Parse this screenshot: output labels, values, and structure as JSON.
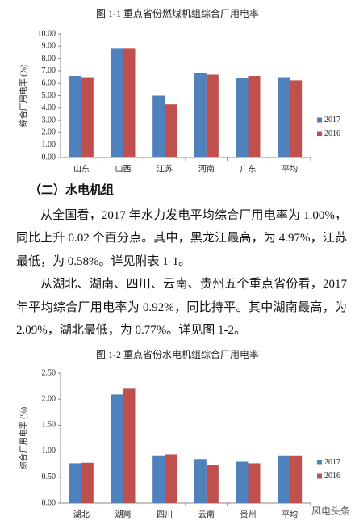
{
  "chart_data": [
    {
      "type": "bar",
      "title": "图 1-1 重点省份燃煤机组综合厂用电率",
      "y_label": "综合厂用电率 (%)",
      "categories": [
        "山东",
        "山西",
        "江苏",
        "河南",
        "广东",
        "平均"
      ],
      "series": [
        {
          "name": "2017",
          "color": "#4f81bd",
          "values": [
            6.6,
            8.8,
            5.0,
            6.85,
            6.45,
            6.5
          ]
        },
        {
          "name": "2016",
          "color": "#c0504d",
          "values": [
            6.5,
            8.8,
            4.3,
            6.7,
            6.6,
            6.25
          ]
        }
      ],
      "ylim": [
        0,
        10
      ],
      "yticks": [
        {
          "value": 0,
          "label": "0.00"
        },
        {
          "value": 1,
          "label": "1.00"
        },
        {
          "value": 2,
          "label": "2.00"
        },
        {
          "value": 3,
          "label": "3.00"
        },
        {
          "value": 4,
          "label": "4.00"
        },
        {
          "value": 5,
          "label": "5.00"
        },
        {
          "value": 6,
          "label": "6.00"
        },
        {
          "value": 7,
          "label": "7.00"
        },
        {
          "value": 8,
          "label": "8.00"
        },
        {
          "value": 9,
          "label": "9.00"
        },
        {
          "value": 10,
          "label": "10.00"
        }
      ],
      "grid": false,
      "legend": "right"
    },
    {
      "type": "bar",
      "title": "图 1-2 重点省份水电机组综合厂用电率",
      "y_label": "综合厂用电率 (%)",
      "categories": [
        "湖北",
        "湖南",
        "四川",
        "云南",
        "贵州",
        "平均"
      ],
      "series": [
        {
          "name": "2017",
          "color": "#4f81bd",
          "values": [
            0.77,
            2.09,
            0.92,
            0.85,
            0.8,
            0.92
          ]
        },
        {
          "name": "2016",
          "color": "#c0504d",
          "values": [
            0.78,
            2.2,
            0.94,
            0.73,
            0.77,
            0.92
          ]
        }
      ],
      "ylim": [
        0,
        2.5
      ],
      "yticks": [
        {
          "value": 0,
          "label": "0.00"
        },
        {
          "value": 0.5,
          "label": "0.50"
        },
        {
          "value": 1,
          "label": "1.00"
        },
        {
          "value": 1.5,
          "label": "1.50"
        },
        {
          "value": 2,
          "label": "2.00"
        },
        {
          "value": 2.5,
          "label": "2.50"
        }
      ],
      "grid": false,
      "legend": "right"
    }
  ],
  "document": {
    "heading": "（二）水电机组",
    "paragraphs": [
      "从全国看，2017 年水力发电平均综合厂用电率为 1.00%，同比上升 0.02 个百分点。其中，黑龙江最高，为 4.97%，江苏最低，为 0.58%。详见附表 1-1。",
      "从湖北、湖南、四川、云南、贵州五个重点省份看，2017 年平均综合厂用电率为 0.92%，同比持平。其中湖南最高，为 2.09%，湖北最低，为 0.77%。详见图 1-2。"
    ],
    "watermark": "风电头条"
  }
}
